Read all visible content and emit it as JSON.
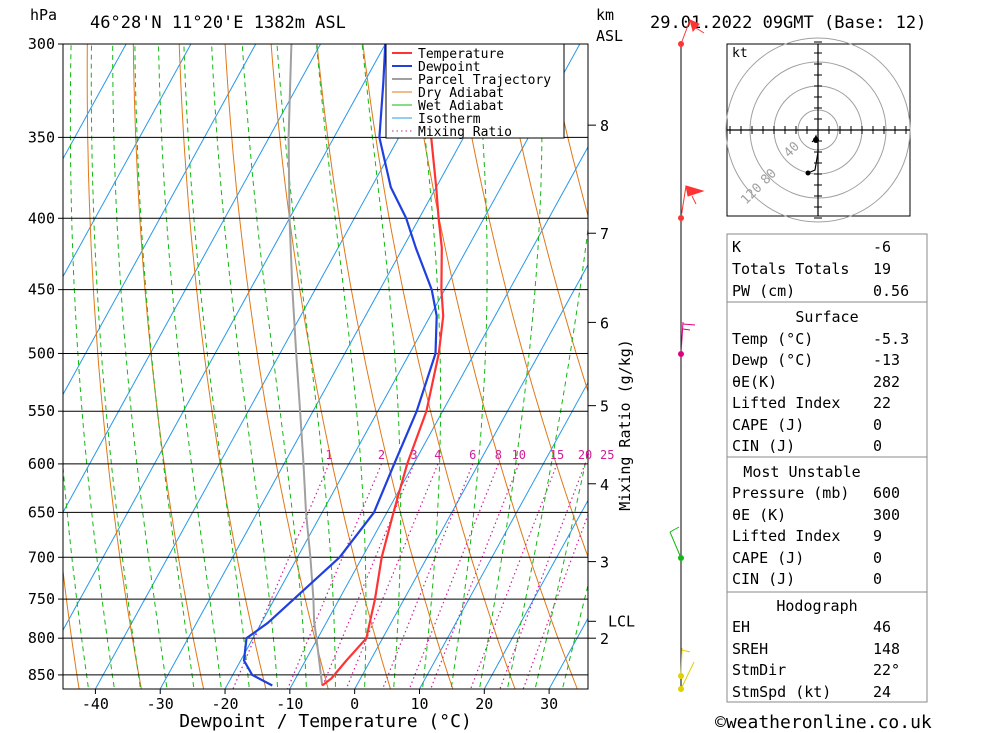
{
  "header": {
    "unit_hpa": "hPa",
    "location": "46°28'N 11°20'E 1382m ASL",
    "unit_km": "km",
    "unit_asl": "ASL",
    "datetime": "29.01.2022 09GMT (Base: 12)"
  },
  "colors": {
    "temperature": "#ff3333",
    "dewpoint": "#1f3fdf",
    "parcel": "#a0a0a0",
    "dry_adiabat": "#e07818",
    "wet_adiabat": "#12b812",
    "isotherm": "#2898e8",
    "mixing_ratio": "#d0209a"
  },
  "chart_data": {
    "type": "line",
    "title": "46°28'N 11°20'E 1382m ASL",
    "xlabel": "Dewpoint / Temperature (°C)",
    "ylabel": "hPa",
    "y2label": "Mixing Ratio (g/kg)",
    "xlim": [
      -45,
      36
    ],
    "ylim": [
      870,
      300
    ],
    "x_ticks": [
      "-40",
      "-30",
      "-20",
      "-10",
      "0",
      "10",
      "20",
      "30"
    ],
    "x_tick_values": [
      -40,
      -30,
      -20,
      -10,
      0,
      10,
      20,
      30
    ],
    "pressure_levels": [
      300,
      350,
      400,
      450,
      500,
      550,
      600,
      650,
      700,
      750,
      800,
      850
    ],
    "pressure_labels": [
      "300",
      "350",
      "400",
      "450",
      "500",
      "550",
      "600",
      "650",
      "700",
      "750",
      "800",
      "850"
    ],
    "km_labels": [
      "8",
      "7",
      "6",
      "5",
      "4",
      "3",
      "2"
    ],
    "km_pressures": [
      343,
      410,
      475,
      545,
      620,
      705,
      800
    ],
    "lcl_label": "LCL",
    "lcl_pressure": 778,
    "mixing_ratio_labels": [
      "1",
      "2",
      "3",
      "4",
      "6",
      "8",
      "10",
      "15",
      "20",
      "25"
    ],
    "mixing_ratio_values": [
      1,
      2,
      3,
      4,
      6,
      8,
      10,
      15,
      20,
      25
    ],
    "legend": [
      "Temperature",
      "Dewpoint",
      "Parcel Trajectory",
      "Dry Adiabat",
      "Wet Adiabat",
      "Isotherm",
      "Mixing Ratio"
    ],
    "series": [
      {
        "name": "Temperature",
        "pressure": [
          865,
          855,
          830,
          800,
          780,
          750,
          700,
          650,
          600,
          550,
          500,
          470,
          450,
          420,
          400,
          380,
          350,
          320,
          300
        ],
        "values": [
          -5.3,
          -4.5,
          -3.7,
          -2.5,
          -3.3,
          -4.5,
          -7,
          -9,
          -11,
          -12.5,
          -15.5,
          -18,
          -20.5,
          -24,
          -27,
          -30,
          -35,
          -40,
          -44
        ]
      },
      {
        "name": "Dewpoint",
        "pressure": [
          865,
          850,
          830,
          800,
          780,
          750,
          700,
          650,
          600,
          550,
          500,
          470,
          450,
          420,
          400,
          380,
          350,
          320,
          300
        ],
        "values": [
          -13,
          -17,
          -19.5,
          -21,
          -19,
          -17,
          -13.5,
          -12,
          -13,
          -14,
          -16,
          -19,
          -22,
          -28,
          -32,
          -37,
          -43,
          -47,
          -50
        ]
      },
      {
        "name": "Parcel Trajectory",
        "pressure": [
          865,
          850,
          800,
          778,
          750,
          700,
          650,
          600,
          550,
          500,
          450,
          400,
          350,
          300
        ],
        "values": [
          -5.3,
          -6.4,
          -10.2,
          -12,
          -14,
          -18,
          -22.5,
          -27,
          -32,
          -37.5,
          -43.5,
          -50,
          -57,
          -64.5
        ]
      }
    ]
  },
  "hodograph": {
    "unit": "kt",
    "ring_labels": [
      "40",
      "80",
      "120"
    ]
  },
  "stats": {
    "indices": [
      {
        "label": "K",
        "value": "-6"
      },
      {
        "label": "Totals Totals",
        "value": "19"
      },
      {
        "label": "PW (cm)",
        "value": "0.56"
      }
    ],
    "surface_title": "Surface",
    "surface": [
      {
        "label": "Temp (°C)",
        "value": "-5.3"
      },
      {
        "label": "Dewp (°C)",
        "value": "-13"
      },
      {
        "label": "θE(K)",
        "value": "282"
      },
      {
        "label": "Lifted Index",
        "value": "22"
      },
      {
        "label": "CAPE (J)",
        "value": "0"
      },
      {
        "label": "CIN (J)",
        "value": "0"
      }
    ],
    "unstable_title": "Most Unstable",
    "unstable": [
      {
        "label": "Pressure (mb)",
        "value": "600"
      },
      {
        "label": "θE (K)",
        "value": "300"
      },
      {
        "label": "Lifted Index",
        "value": "9"
      },
      {
        "label": "CAPE (J)",
        "value": "0"
      },
      {
        "label": "CIN (J)",
        "value": "0"
      }
    ],
    "hodograph_title": "Hodograph",
    "hodo_stats": [
      {
        "label": "EH",
        "value": "46"
      },
      {
        "label": "SREH",
        "value": "148"
      },
      {
        "label": "StmDir",
        "value": "22°"
      },
      {
        "label": "StmSpd (kt)",
        "value": "24"
      }
    ]
  },
  "footer": {
    "copyright": "©weatheronline.co.uk"
  }
}
